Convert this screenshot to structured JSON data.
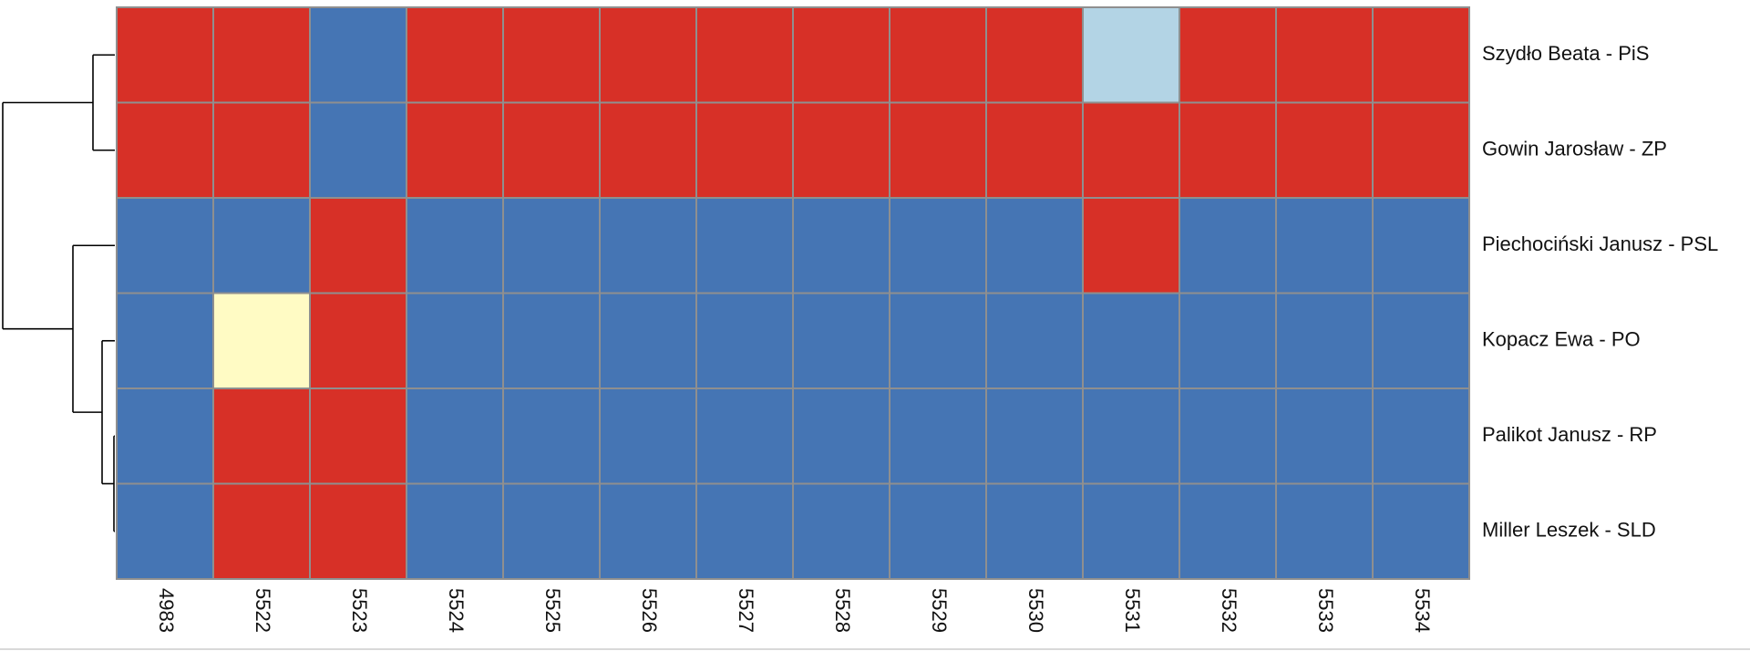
{
  "chart_data": {
    "type": "heatmap",
    "columns": [
      "4983",
      "5522",
      "5523",
      "5524",
      "5525",
      "5526",
      "5527",
      "5528",
      "5529",
      "5530",
      "5531",
      "5532",
      "5533",
      "5534"
    ],
    "rows": [
      "Szydło Beata - PiS",
      "Gowin Jarosław - ZP",
      "Piechociński Janusz - PSL",
      "Kopacz Ewa - PO",
      "Palikot Janusz - RP",
      "Miller Leszek - SLD"
    ],
    "colors": {
      "red": "#d73027",
      "blue": "#4575b4",
      "light_blue": "#b3d4e5",
      "light_yellow": "#fffbc4"
    },
    "values": [
      [
        "red",
        "red",
        "blue",
        "red",
        "red",
        "red",
        "red",
        "red",
        "red",
        "red",
        "light_blue",
        "red",
        "red",
        "red"
      ],
      [
        "red",
        "red",
        "blue",
        "red",
        "red",
        "red",
        "red",
        "red",
        "red",
        "red",
        "red",
        "red",
        "red",
        "red"
      ],
      [
        "blue",
        "blue",
        "red",
        "blue",
        "blue",
        "blue",
        "blue",
        "blue",
        "blue",
        "blue",
        "red",
        "blue",
        "blue",
        "blue"
      ],
      [
        "blue",
        "light_yellow",
        "red",
        "blue",
        "blue",
        "blue",
        "blue",
        "blue",
        "blue",
        "blue",
        "blue",
        "blue",
        "blue",
        "blue"
      ],
      [
        "blue",
        "red",
        "red",
        "blue",
        "blue",
        "blue",
        "blue",
        "blue",
        "blue",
        "blue",
        "blue",
        "blue",
        "blue",
        "blue"
      ],
      [
        "blue",
        "red",
        "red",
        "blue",
        "blue",
        "blue",
        "blue",
        "blue",
        "blue",
        "blue",
        "blue",
        "blue",
        "blue",
        "blue"
      ]
    ],
    "dendrogram": "left"
  }
}
